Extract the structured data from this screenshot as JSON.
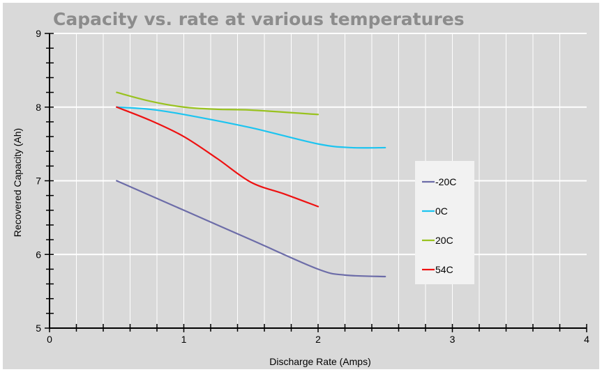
{
  "chart_data": {
    "type": "line",
    "title": "Capacity vs. rate at various temperatures",
    "xlabel": "Discharge Rate (Amps)",
    "ylabel": "Recovered Capacity (Ah)",
    "xlim": [
      0,
      4
    ],
    "ylim": [
      5,
      9
    ],
    "xticks": [
      "0",
      "1",
      "2",
      "3",
      "4"
    ],
    "yticks": [
      "5",
      "6",
      "7",
      "8",
      "9"
    ],
    "grid": true,
    "legend_position": "right",
    "series": [
      {
        "name": "-20C",
        "color": "#6c6ca8",
        "x": [
          0.5,
          1.0,
          1.5,
          2.0,
          2.2,
          2.5
        ],
        "y": [
          7.0,
          6.6,
          6.2,
          5.8,
          5.72,
          5.7
        ]
      },
      {
        "name": "0C",
        "color": "#1cc4f0",
        "x": [
          0.5,
          0.75,
          1.0,
          1.5,
          2.0,
          2.25,
          2.5
        ],
        "y": [
          8.0,
          7.97,
          7.9,
          7.72,
          7.5,
          7.45,
          7.45
        ]
      },
      {
        "name": "20C",
        "color": "#99c21f",
        "x": [
          0.5,
          0.75,
          1.0,
          1.25,
          1.5,
          2.0
        ],
        "y": [
          8.2,
          8.08,
          8.0,
          7.97,
          7.96,
          7.9
        ]
      },
      {
        "name": "54C",
        "color": "#ee1111",
        "x": [
          0.5,
          0.75,
          1.0,
          1.25,
          1.5,
          1.75,
          2.0
        ],
        "y": [
          8.0,
          7.82,
          7.6,
          7.3,
          6.98,
          6.82,
          6.65
        ]
      }
    ]
  }
}
